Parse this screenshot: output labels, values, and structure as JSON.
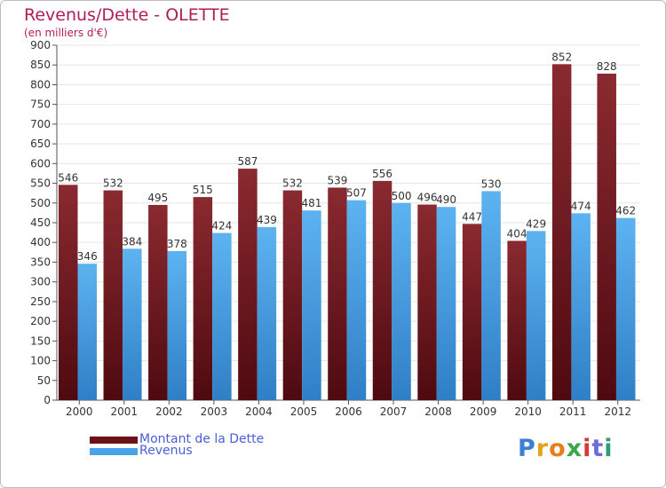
{
  "chart_data": {
    "type": "bar",
    "title": "Revenus/Dette - OLETTE",
    "subtitle": "(en milliers d'€)",
    "categories": [
      "2000",
      "2001",
      "2002",
      "2003",
      "2004",
      "2005",
      "2006",
      "2007",
      "2008",
      "2009",
      "2010",
      "2011",
      "2012"
    ],
    "series": [
      {
        "name": "Montant de la Dette",
        "color": "#6b1218",
        "values": [
          546,
          532,
          495,
          515,
          587,
          532,
          539,
          556,
          496,
          447,
          404,
          852,
          828
        ]
      },
      {
        "name": "Revenus",
        "color": "#4aa3e6",
        "values": [
          346,
          384,
          378,
          424,
          439,
          481,
          507,
          500,
          490,
          530,
          429,
          474,
          462
        ]
      }
    ],
    "ylim": [
      0,
      900
    ],
    "ytick_step": 50,
    "grid": true,
    "legend_position": "bottom-left"
  },
  "logo": {
    "letters": [
      "P",
      "r",
      "o",
      "x",
      "i",
      "t",
      "i"
    ],
    "colors": [
      "#3a7fd0",
      "#e2a21a",
      "#e87d1e",
      "#3aa84a",
      "#d43a3a",
      "#6d6dd8",
      "#2f9e6e"
    ]
  }
}
